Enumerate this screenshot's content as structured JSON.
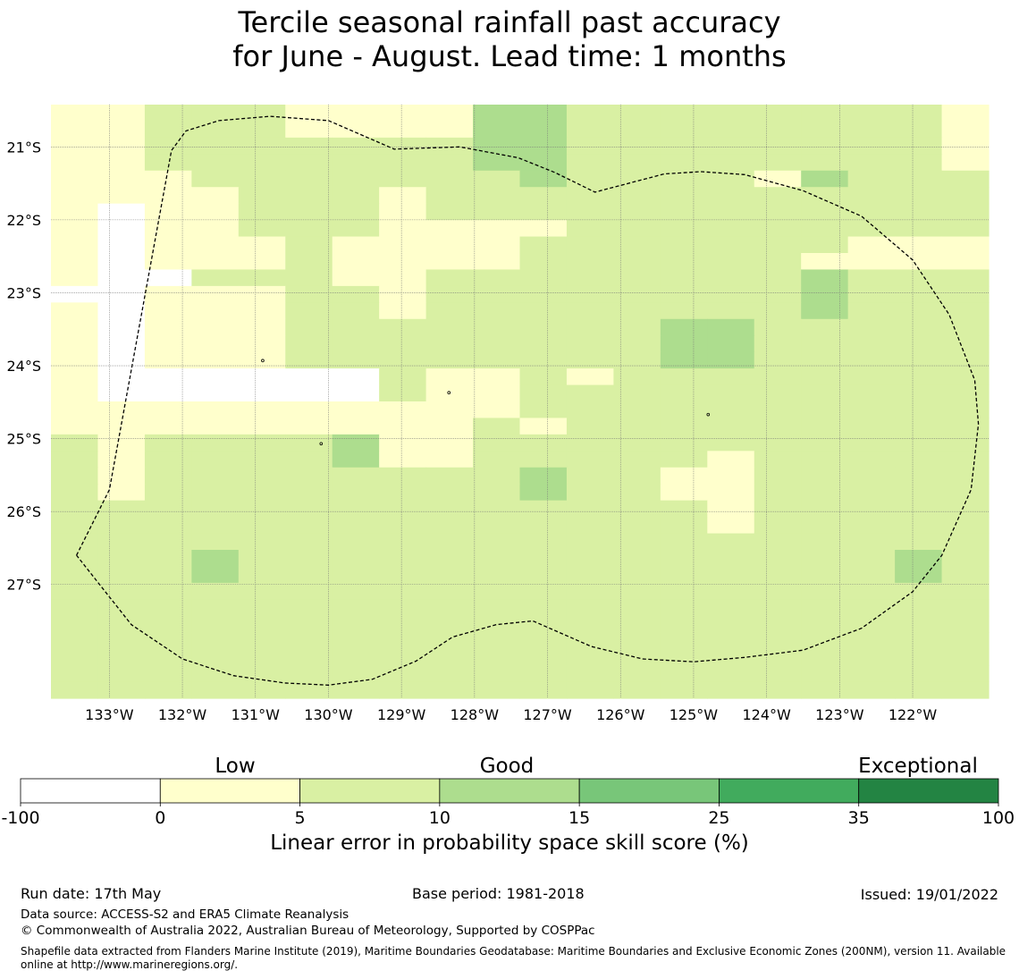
{
  "title": {
    "line1": "Tercile seasonal rainfall past accuracy",
    "line2": "for June - August. Lead time: 1 months"
  },
  "map": {
    "lat_ticks": [
      "21°S",
      "22°S",
      "23°S",
      "24°S",
      "25°S",
      "26°S",
      "27°S"
    ],
    "lon_ticks": [
      "133°W",
      "132°W",
      "131°W",
      "130°W",
      "129°W",
      "128°W",
      "127°W",
      "126°W",
      "125°W",
      "124°W",
      "123°W",
      "122°W"
    ],
    "grid_lats": [
      -21,
      -22,
      -23,
      -24,
      -25,
      -26,
      -27
    ],
    "grid_lons": [
      -133,
      -132,
      -131,
      -130,
      -129,
      -128,
      -127,
      -126,
      -125,
      -124,
      -123,
      -122
    ],
    "lon_range": [
      -133.8,
      -120.96
    ],
    "lat_range": [
      -20.42,
      -28.56
    ],
    "cell_colors": {
      "0": "#ffffff",
      "1": "#ffffcc",
      "2": "#d9f0a3",
      "3": "#addd8e"
    },
    "grid_rows": [
      "11222111133222222221",
      "11222111133222222221",
      "11222222233222222221",
      "11222222233222222221",
      "11122222223222213222",
      "11112221222222222222",
      "10112221222222222222",
      "10112221111222222222",
      "10111211112222222111",
      "10111211112222221111",
      "10022211222222223222",
      "00111221222222223222",
      "10111221222222223222",
      "10111222222223322222",
      "10111222222223322222",
      "10111222222223322222",
      "10000002112122222222",
      "10000002112222222222",
      "11111111112222222222",
      "11111111121222222222",
      "21222231122222222222",
      "21222231122222122222",
      "21222222223221122222",
      "21222222223221122222",
      "22222222222222122222",
      "22222222222222122222",
      "22222222222222222222",
      "22232222222222222232",
      "22232222222222222232",
      "22222222222222222222",
      "22222222222222222222",
      "22222222222222222222",
      "22222222222222222222",
      "22222222222222222222",
      "22222222222222222222",
      "22222222222222222222"
    ],
    "eez_boundary": [
      [
        -133.45,
        -26.6
      ],
      [
        -133.0,
        -25.7
      ],
      [
        -132.15,
        -21.05
      ],
      [
        -131.95,
        -20.78
      ],
      [
        -131.5,
        -20.64
      ],
      [
        -130.8,
        -20.58
      ],
      [
        -130.0,
        -20.64
      ],
      [
        -129.1,
        -21.03
      ],
      [
        -128.2,
        -21.0
      ],
      [
        -127.4,
        -21.15
      ],
      [
        -126.9,
        -21.35
      ],
      [
        -126.35,
        -21.62
      ],
      [
        -125.4,
        -21.37
      ],
      [
        -124.9,
        -21.34
      ],
      [
        -124.3,
        -21.38
      ],
      [
        -123.5,
        -21.6
      ],
      [
        -122.7,
        -21.95
      ],
      [
        -122.0,
        -22.55
      ],
      [
        -121.5,
        -23.3
      ],
      [
        -121.15,
        -24.2
      ],
      [
        -121.1,
        -24.8
      ],
      [
        -121.2,
        -25.7
      ],
      [
        -121.6,
        -26.6
      ],
      [
        -122.0,
        -27.1
      ],
      [
        -122.7,
        -27.6
      ],
      [
        -123.5,
        -27.9
      ],
      [
        -124.3,
        -28.0
      ],
      [
        -125.0,
        -28.06
      ],
      [
        -125.7,
        -28.02
      ],
      [
        -126.4,
        -27.85
      ],
      [
        -127.2,
        -27.5
      ],
      [
        -127.7,
        -27.55
      ],
      [
        -128.3,
        -27.72
      ],
      [
        -128.8,
        -28.05
      ],
      [
        -129.4,
        -28.3
      ],
      [
        -130.0,
        -28.38
      ],
      [
        -130.6,
        -28.35
      ],
      [
        -131.3,
        -28.25
      ],
      [
        -132.0,
        -28.02
      ],
      [
        -132.7,
        -27.55
      ],
      [
        -133.45,
        -26.6
      ]
    ],
    "islands": [
      {
        "lon": -128.35,
        "lat": -24.37
      },
      {
        "lon": -124.8,
        "lat": -24.67
      },
      {
        "lon": -130.9,
        "lat": -23.93
      },
      {
        "lon": -130.1,
        "lat": -25.07
      }
    ]
  },
  "legend": {
    "category_labels": [
      "Low",
      "Good",
      "Exceptional"
    ],
    "tick_labels": [
      "-100",
      "0",
      "5",
      "10",
      "15",
      "25",
      "35",
      "100"
    ],
    "colors": [
      "#ffffff",
      "#ffffcc",
      "#d9f0a3",
      "#addd8e",
      "#78c679",
      "#41ab5d",
      "#238443"
    ],
    "title": "Linear error in probability space skill score (%)"
  },
  "footer": {
    "run_date": "Run date: 17th May",
    "base_period": "Base period: 1981-2018",
    "issued": "Issued: 19/01/2022",
    "data_source": "Data source: ACCESS-S2 and ERA5 Climate Reanalysis",
    "copyright": "© Commonwealth of Australia 2022, Australian Bureau of Meteorology, Supported by COSPPac",
    "shapefile": "Shapefile data extracted from Flanders Marine Institute (2019), Maritime Boundaries Geodatabase: Maritime Boundaries and Exclusive Economic Zones (200NM), version 11. Available online at http://www.marineregions.org/."
  }
}
